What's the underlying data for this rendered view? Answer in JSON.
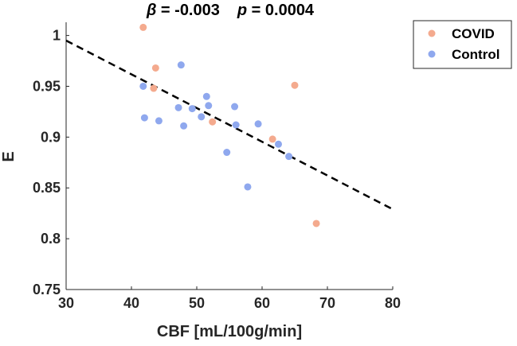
{
  "colors": {
    "covid": "#f4aa8e",
    "control": "#8fa8ee",
    "axis": "#262626",
    "fit_line": "#000000"
  },
  "chart_data": {
    "type": "scatter",
    "title": {
      "beta_symbol": "β",
      "beta_text": " = -0.003",
      "p_symbol": "p",
      "p_text": " = 0.0004"
    },
    "xlabel": "CBF [mL/100g/min]",
    "ylabel": "E",
    "xlim": [
      30,
      80
    ],
    "ylim": [
      0.75,
      1.02
    ],
    "x_ticks": [
      30,
      40,
      50,
      60,
      70,
      80
    ],
    "x_tick_labels": [
      "30",
      "40",
      "50",
      "60",
      "70",
      "80"
    ],
    "y_ticks": [
      0.75,
      0.8,
      0.85,
      0.9,
      0.95,
      1.0
    ],
    "y_tick_labels": [
      "0.75",
      "0.8",
      "0.85",
      "0.9",
      "0.95",
      "1"
    ],
    "legend": {
      "position": "outside-top-right",
      "entries": [
        "COVID",
        "Control"
      ]
    },
    "fit_line": {
      "style": "dashed",
      "x": [
        30,
        80
      ],
      "y": [
        0.995,
        0.829
      ]
    },
    "series": [
      {
        "name": "COVID",
        "points": [
          {
            "x": 41.8,
            "y": 1.008
          },
          {
            "x": 43.7,
            "y": 0.968
          },
          {
            "x": 43.4,
            "y": 0.948
          },
          {
            "x": 52.4,
            "y": 0.915
          },
          {
            "x": 61.6,
            "y": 0.898
          },
          {
            "x": 65.0,
            "y": 0.951
          },
          {
            "x": 68.3,
            "y": 0.815
          }
        ]
      },
      {
        "name": "Control",
        "points": [
          {
            "x": 47.6,
            "y": 0.971
          },
          {
            "x": 41.8,
            "y": 0.95
          },
          {
            "x": 51.5,
            "y": 0.94
          },
          {
            "x": 51.8,
            "y": 0.931
          },
          {
            "x": 55.8,
            "y": 0.93
          },
          {
            "x": 47.2,
            "y": 0.929
          },
          {
            "x": 49.3,
            "y": 0.928
          },
          {
            "x": 50.7,
            "y": 0.92
          },
          {
            "x": 42.0,
            "y": 0.919
          },
          {
            "x": 44.2,
            "y": 0.916
          },
          {
            "x": 56.0,
            "y": 0.912
          },
          {
            "x": 59.4,
            "y": 0.913
          },
          {
            "x": 48.0,
            "y": 0.911
          },
          {
            "x": 62.5,
            "y": 0.893
          },
          {
            "x": 54.6,
            "y": 0.885
          },
          {
            "x": 64.1,
            "y": 0.881
          },
          {
            "x": 57.8,
            "y": 0.851
          }
        ]
      }
    ]
  }
}
